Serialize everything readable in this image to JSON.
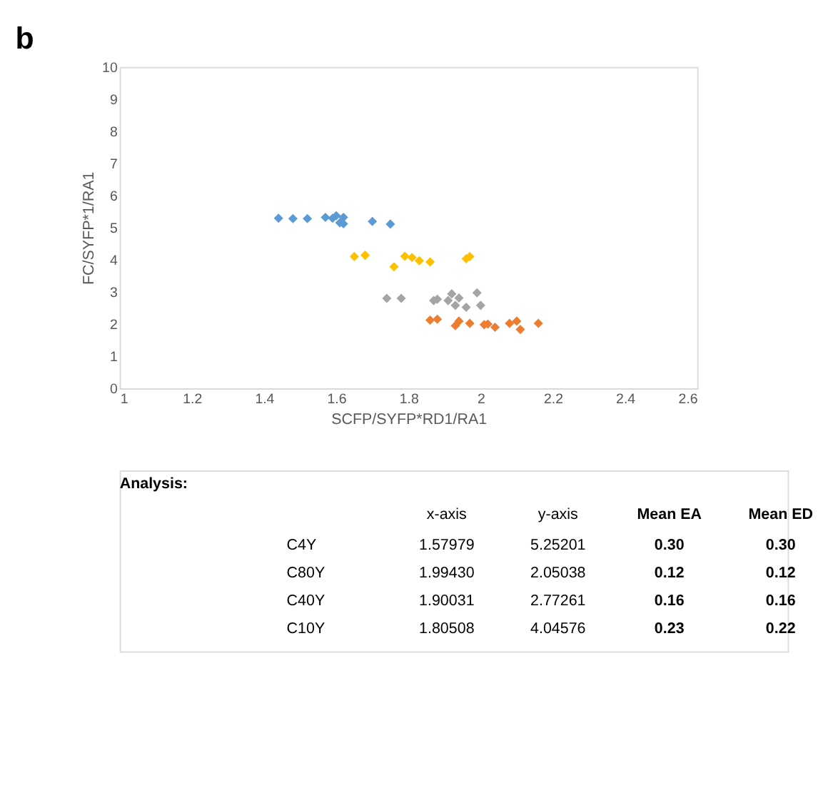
{
  "chart_data": {
    "type": "scatter",
    "xlabel": "SCFP/SYFP*RD1/RA1",
    "ylabel": "FC/SYFP*1/RA1",
    "xlim": [
      1,
      2.6
    ],
    "xticks": [
      1,
      1.2,
      1.4,
      1.6,
      1.8,
      2,
      2.2,
      2.4,
      2.6
    ],
    "ylim": [
      0,
      10
    ],
    "yticks": [
      0,
      1,
      2,
      3,
      4,
      5,
      6,
      7,
      8,
      9,
      10
    ],
    "grid": false,
    "legend": false,
    "marker": "diamond",
    "series": [
      {
        "color": "#5b9bd5",
        "x": [
          1.44,
          1.48,
          1.52,
          1.57,
          1.59,
          1.6,
          1.61,
          1.62,
          1.62,
          1.7,
          1.75
        ],
        "values": [
          5.29,
          5.28,
          5.28,
          5.32,
          5.29,
          5.37,
          5.15,
          5.32,
          5.12,
          5.19,
          5.11
        ]
      },
      {
        "color": "#ffc000",
        "x": [
          1.65,
          1.68,
          1.76,
          1.79,
          1.81,
          1.83,
          1.86,
          1.96,
          1.97
        ],
        "values": [
          4.1,
          4.14,
          3.78,
          4.11,
          4.07,
          3.97,
          3.93,
          4.03,
          4.1
        ]
      },
      {
        "color": "#a5a5a5",
        "x": [
          1.74,
          1.78,
          1.87,
          1.88,
          1.91,
          1.92,
          1.93,
          1.94,
          1.96,
          1.99,
          2.0
        ],
        "values": [
          2.8,
          2.8,
          2.73,
          2.77,
          2.73,
          2.94,
          2.58,
          2.81,
          2.52,
          2.97,
          2.58
        ]
      },
      {
        "color": "#ed7d31",
        "x": [
          1.86,
          1.88,
          1.93,
          1.94,
          1.97,
          2.01,
          2.02,
          2.04,
          2.08,
          2.1,
          2.11,
          2.16
        ],
        "values": [
          2.12,
          2.15,
          1.95,
          2.09,
          2.02,
          1.98,
          2.0,
          1.9,
          2.02,
          2.09,
          1.83,
          2.02
        ]
      }
    ],
    "annotations": [
      "b",
      "Analysis:",
      "x-axis",
      "y-axis",
      "Mean EA",
      "Mean ED",
      "C4Y",
      "1.57979",
      "5.25201",
      "0.30",
      "0.30",
      "C80Y",
      "1.99430",
      "2.05038",
      "0.12",
      "0.12",
      "C40Y",
      "1.90031",
      "2.77261",
      "0.16",
      "0.16",
      "C10Y",
      "1.80508",
      "4.04576",
      "0.23",
      "0.22"
    ]
  }
}
